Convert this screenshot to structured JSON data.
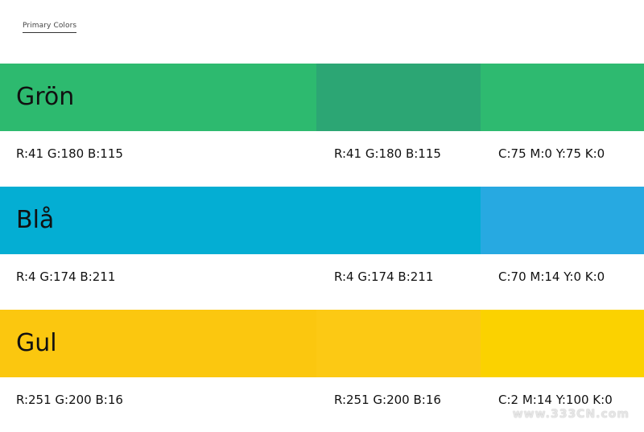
{
  "header": {
    "title": "Primary Colors"
  },
  "colors": [
    {
      "name": "Grön",
      "swatches": [
        "#2dba6f",
        "#2ca674",
        "#2eba70"
      ],
      "values": [
        "R:41 G:180 B:115",
        "R:41 G:180 B:115",
        "C:75 M:0 Y:75 K:0"
      ]
    },
    {
      "name": "Blå",
      "swatches": [
        "#04aed3",
        "#04aed3",
        "#27a9e1"
      ],
      "values": [
        "R:4 G:174 B:211",
        "R:4 G:174 B:211",
        "C:70 M:14 Y:0 K:0"
      ]
    },
    {
      "name": "Gul",
      "swatches": [
        "#fbc70f",
        "#fcc914",
        "#fbd200"
      ],
      "values": [
        "R:251 G:200 B:16",
        "R:251 G:200 B:16",
        "C:2 M:14 Y:100 K:0"
      ]
    }
  ],
  "watermark": "www.333CN.com"
}
